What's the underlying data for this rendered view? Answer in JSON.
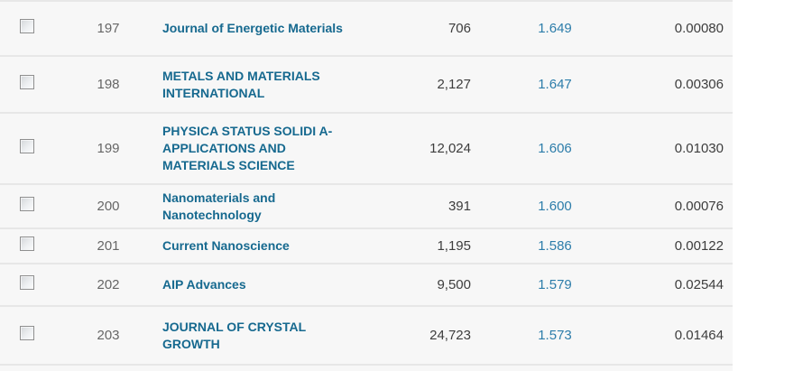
{
  "table": {
    "rows": [
      {
        "rank": "197",
        "title": "Journal of Energetic Materials",
        "total_cites": "706",
        "impact_factor": "1.649",
        "score": "0.00080"
      },
      {
        "rank": "198",
        "title": "METALS AND MATERIALS\nINTERNATIONAL",
        "total_cites": "2,127",
        "impact_factor": "1.647",
        "score": "0.00306"
      },
      {
        "rank": "199",
        "title": "PHYSICA STATUS SOLIDI A-\nAPPLICATIONS AND\nMATERIALS SCIENCE",
        "total_cites": "12,024",
        "impact_factor": "1.606",
        "score": "0.01030"
      },
      {
        "rank": "200",
        "title": "Nanomaterials and\nNanotechnology",
        "total_cites": "391",
        "impact_factor": "1.600",
        "score": "0.00076"
      },
      {
        "rank": "201",
        "title": "Current Nanoscience",
        "total_cites": "1,195",
        "impact_factor": "1.586",
        "score": "0.00122"
      },
      {
        "rank": "202",
        "title": "AIP Advances",
        "total_cites": "9,500",
        "impact_factor": "1.579",
        "score": "0.02544"
      },
      {
        "rank": "203",
        "title": "JOURNAL OF CRYSTAL\nGROWTH",
        "total_cites": "24,723",
        "impact_factor": "1.573",
        "score": "0.01464"
      }
    ],
    "colors": {
      "title_link": "#16698f",
      "impact_factor_link": "#2d7daa",
      "rank_text": "#666666",
      "value_text": "#3d3d3d",
      "row_background": "#f7f7f7",
      "separator": "#e7e7e7"
    }
  }
}
